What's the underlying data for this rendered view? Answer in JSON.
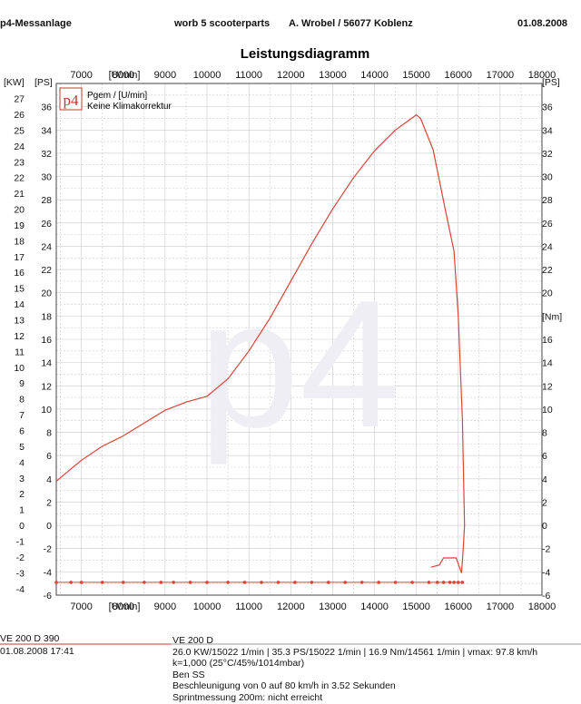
{
  "header": {
    "left": "p4-Messanlage",
    "center": "worb 5 scooterparts",
    "company": "A. Wrobel / 56077 Koblenz",
    "date": "01.08.2008"
  },
  "chart_data": {
    "type": "line",
    "title": "Leistungsdiagramm",
    "x_unit_label": "[U/min]",
    "x_range": [
      6400,
      18000
    ],
    "x_ticks": [
      7000,
      8000,
      9000,
      10000,
      11000,
      12000,
      13000,
      14000,
      15000,
      16000,
      17000,
      18000
    ],
    "kw_unit_label": "[KW]",
    "kw_ticks": [
      -4,
      -3,
      -2,
      -1,
      0,
      1,
      2,
      3,
      4,
      5,
      6,
      7,
      8,
      9,
      10,
      11,
      12,
      13,
      14,
      15,
      16,
      17,
      18,
      19,
      20,
      21,
      22,
      23,
      24,
      25,
      26,
      27
    ],
    "ps_unit_label": "[PS]",
    "ps_range": [
      -6,
      38
    ],
    "ps_ticks": [
      -6,
      -4,
      -2,
      0,
      2,
      4,
      6,
      8,
      10,
      12,
      14,
      16,
      18,
      20,
      22,
      24,
      26,
      28,
      30,
      32,
      34,
      36
    ],
    "nm_unit_label": "[Nm]",
    "grid": true,
    "logo_text": "p4",
    "watermark": "p4",
    "legend": [
      "Pgem / [U/min]",
      "Keine Klimakorrektur"
    ],
    "colors": {
      "curve": "#d9453a",
      "grid": "#c9c9c9",
      "axis": "#444444"
    },
    "series": [
      {
        "values_ps": [
          [
            6400,
            3.8
          ],
          [
            6600,
            4.4
          ],
          [
            7000,
            5.6
          ],
          [
            7500,
            6.8
          ],
          [
            8000,
            7.7
          ],
          [
            8500,
            8.8
          ],
          [
            9000,
            9.9
          ],
          [
            9500,
            10.6
          ],
          [
            10000,
            11.1
          ],
          [
            10500,
            12.6
          ],
          [
            11000,
            15.0
          ],
          [
            11500,
            17.8
          ],
          [
            12000,
            21.0
          ],
          [
            12500,
            24.2
          ],
          [
            13000,
            27.2
          ],
          [
            13500,
            29.9
          ],
          [
            14000,
            32.2
          ],
          [
            14500,
            34.0
          ],
          [
            15000,
            35.3
          ],
          [
            15100,
            35.0
          ],
          [
            15400,
            32.3
          ],
          [
            15700,
            27.0
          ],
          [
            15900,
            23.6
          ],
          [
            16000,
            18.0
          ],
          [
            16100,
            9.0
          ],
          [
            16150,
            0.0
          ],
          [
            16120,
            -2.0
          ],
          [
            16080,
            -4.1
          ],
          [
            15950,
            -2.8
          ],
          [
            15650,
            -2.8
          ],
          [
            15550,
            -3.4
          ],
          [
            15350,
            -3.6
          ]
        ]
      },
      {
        "values_ps": [
          [
            6400,
            -4.9
          ],
          [
            6750,
            -4.9
          ],
          [
            7000,
            -4.9
          ],
          [
            7500,
            -4.9
          ],
          [
            8000,
            -4.9
          ],
          [
            8500,
            -4.9
          ],
          [
            8900,
            -4.9
          ],
          [
            9200,
            -4.9
          ],
          [
            9600,
            -4.9
          ],
          [
            10000,
            -4.9
          ],
          [
            10500,
            -4.9
          ],
          [
            10900,
            -4.9
          ],
          [
            11300,
            -4.9
          ],
          [
            11700,
            -4.9
          ],
          [
            12100,
            -4.9
          ],
          [
            12500,
            -4.9
          ],
          [
            12900,
            -4.9
          ],
          [
            13300,
            -4.9
          ],
          [
            13700,
            -4.9
          ],
          [
            14100,
            -4.9
          ],
          [
            14500,
            -4.9
          ],
          [
            14900,
            -4.9
          ],
          [
            15300,
            -4.9
          ],
          [
            15500,
            -4.9
          ],
          [
            15650,
            -4.9
          ],
          [
            15800,
            -4.9
          ],
          [
            15900,
            -4.9
          ],
          [
            16000,
            -4.9
          ],
          [
            16100,
            -4.9
          ]
        ]
      }
    ]
  },
  "footer": {
    "left_title": "VE 200 D 390",
    "left_date": "01.08.2008  17:41",
    "right_lines": [
      "VE 200 D",
      "26.0 KW/15022 1/min  |  35.3 PS/15022 1/min  |  16.9 Nm/14561 1/min  |  vmax: 97.8 km/h",
      "k=1,000 (25°C/45%/1014mbar)",
      "Ben SS",
      "Beschleunigung von 0 auf 80 km/h in 3.52 Sekunden",
      "Sprintmessung 200m: nicht erreicht"
    ]
  }
}
